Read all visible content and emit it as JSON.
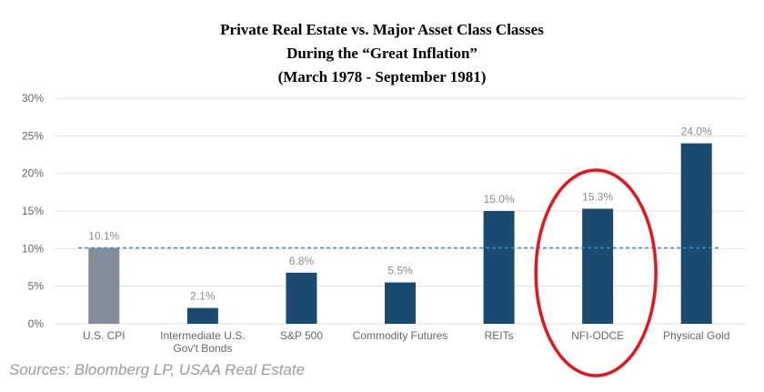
{
  "title_lines": [
    "Private Real Estate vs. Major Asset Class Classes",
    "During the “Great Inflation”",
    "(March 1978 - September 1981)"
  ],
  "source": "Sources: Bloomberg LP, USAA Real Estate",
  "chart_data": {
    "type": "bar",
    "categories": [
      [
        "U.S. CPI"
      ],
      [
        "Intermediate U.S.",
        "Gov't Bonds"
      ],
      [
        "S&P 500"
      ],
      [
        "Commodity Futures"
      ],
      [
        "REITs"
      ],
      [
        "NFI-ODCE"
      ],
      [
        "Physical Gold"
      ]
    ],
    "values": [
      10.1,
      2.1,
      6.8,
      5.5,
      15.0,
      15.3,
      24.0
    ],
    "value_labels": [
      "10.1%",
      "2.1%",
      "6.8%",
      "5.5%",
      "15.0%",
      "15.3%",
      "24.0%"
    ],
    "bar_colors": [
      "#818d9b",
      "#1a4a70",
      "#1a4a70",
      "#1a4a70",
      "#1a4a70",
      "#1a4a70",
      "#1a4a70"
    ],
    "ylim": [
      0,
      30
    ],
    "yticks": [
      0,
      5,
      10,
      15,
      20,
      25,
      30
    ],
    "ytick_labels": [
      "0%",
      "5%",
      "10%",
      "15%",
      "20%",
      "25%",
      "30%"
    ],
    "reference_line": {
      "value": 10.1,
      "style": "dashed",
      "color": "#3a8fc9"
    },
    "highlight": {
      "category_index": 5,
      "shape": "ellipse",
      "color": "#e8141c"
    },
    "grid": true,
    "gridline_color": "#dcdcdc",
    "tick_label_color": "#666666",
    "value_label_color": "#8a8a8a"
  }
}
